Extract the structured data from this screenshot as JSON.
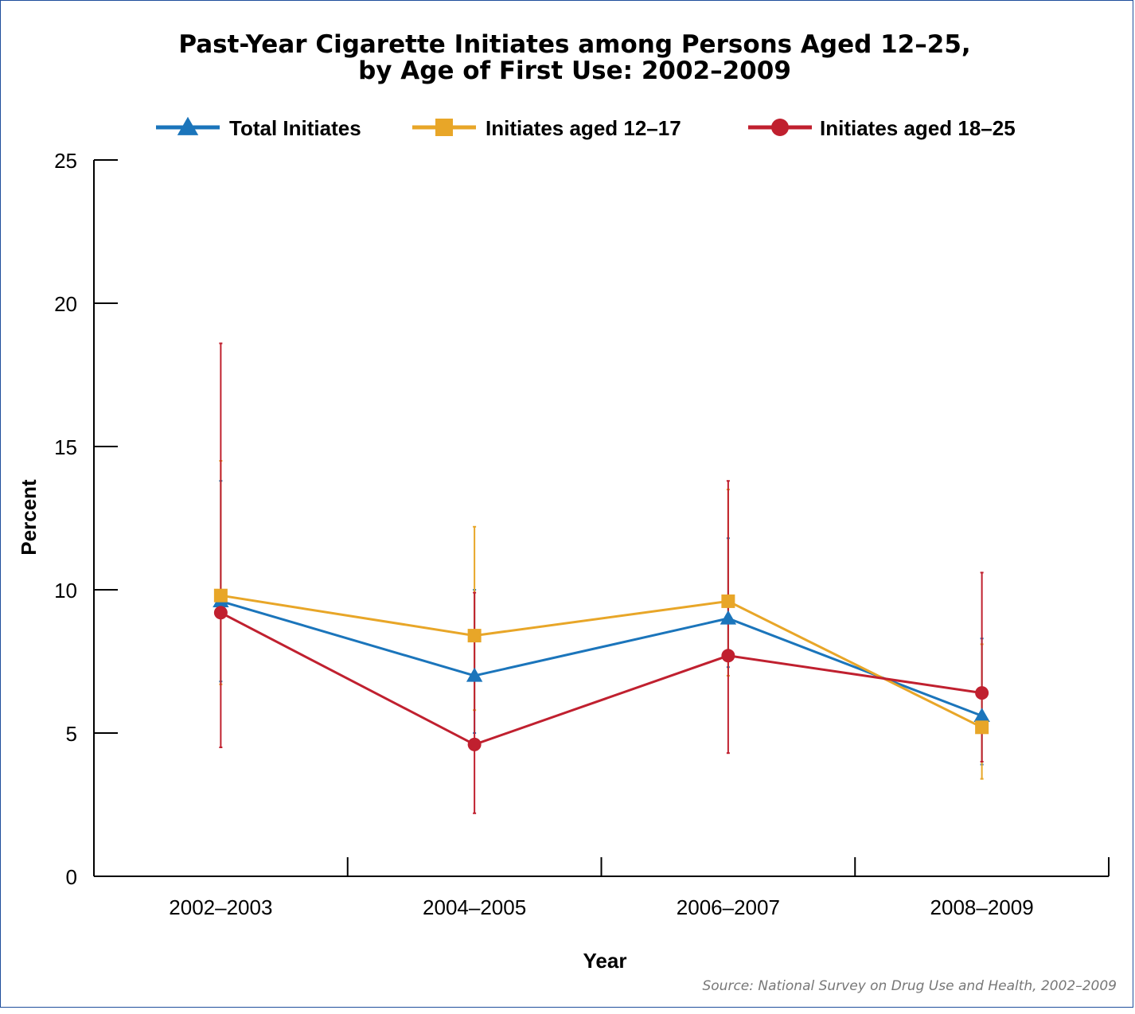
{
  "chart_data": {
    "type": "line",
    "title_line1": "Past-Year Cigarette Initiates among Persons Aged 12–25,",
    "title_line2": "by Age of First Use: 2002–2009",
    "xlabel": "Year",
    "ylabel": "Percent",
    "ylim": [
      0,
      25
    ],
    "yticks": [
      0,
      5,
      10,
      15,
      20,
      25
    ],
    "categories": [
      "2002–2003",
      "2004–2005",
      "2006–2007",
      "2008–2009"
    ],
    "legend_position": "top",
    "grid": false,
    "error_bars": true,
    "series": [
      {
        "name": "Total Initiates",
        "color": "#1b75bb",
        "marker": "triangle",
        "values": [
          9.6,
          7.0,
          9.0,
          5.6
        ],
        "lower": [
          6.8,
          5.0,
          7.3,
          3.9
        ],
        "upper": [
          13.8,
          10.0,
          11.8,
          8.3
        ]
      },
      {
        "name": "Initiates aged 12–17",
        "color": "#e8a628",
        "marker": "square",
        "values": [
          9.8,
          8.4,
          9.6,
          5.2
        ],
        "lower": [
          6.7,
          5.8,
          7.0,
          3.4
        ],
        "upper": [
          14.5,
          12.2,
          13.5,
          8.1
        ]
      },
      {
        "name": "Initiates aged 18–25",
        "color": "#c0202f",
        "marker": "circle",
        "values": [
          9.2,
          4.6,
          7.7,
          6.4
        ],
        "lower": [
          4.5,
          2.2,
          4.3,
          4.0
        ],
        "upper": [
          18.6,
          9.9,
          13.8,
          10.6
        ]
      }
    ]
  },
  "source": "Source: National Survey on Drug Use and Health, 2002–2009"
}
